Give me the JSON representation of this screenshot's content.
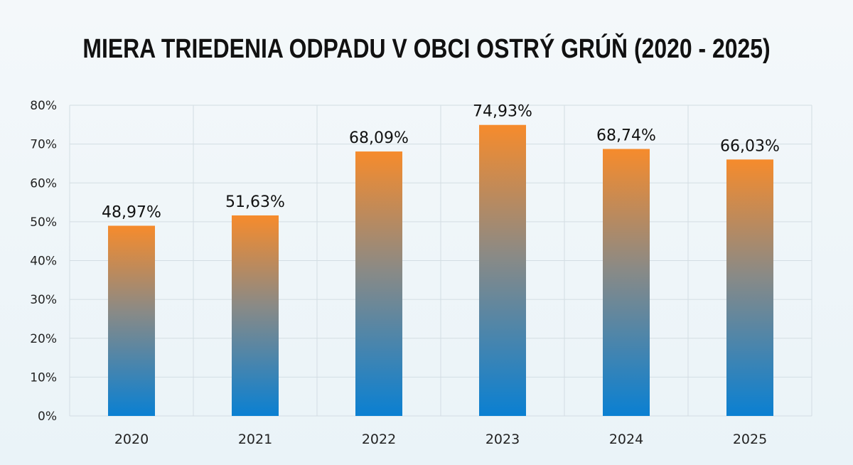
{
  "chart_data": {
    "type": "bar",
    "title": "MIERA TRIEDENIA ODPADU V OBCI OSTRÝ GRÚŇ (2020 - 2025)",
    "categories": [
      "2020",
      "2021",
      "2022",
      "2023",
      "2024",
      "2025"
    ],
    "values": [
      48.97,
      51.63,
      68.09,
      74.93,
      68.74,
      66.03
    ],
    "data_labels": [
      "48,97%",
      "51,63%",
      "68,09%",
      "74,93%",
      "68,74%",
      "66,03%"
    ],
    "xlabel": "",
    "ylabel": "",
    "ylim": [
      0,
      80
    ],
    "yticks": [
      "0%",
      "10%",
      "20%",
      "30%",
      "40%",
      "50%",
      "60%",
      "70%",
      "80%"
    ],
    "grid": true,
    "colors": {
      "bar_top": "#f68b2c",
      "bar_bottom": "#0a80d2",
      "grid": "#d3dde3"
    }
  }
}
